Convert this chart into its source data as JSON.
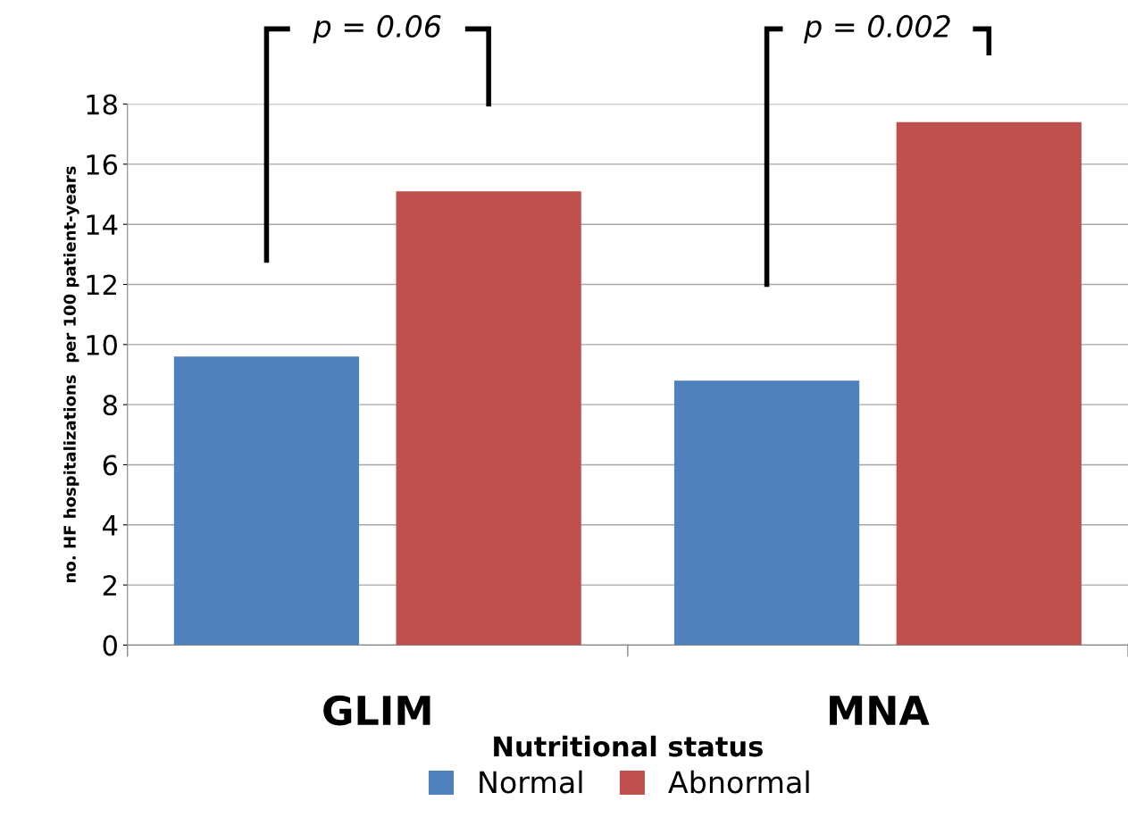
{
  "chart_data": {
    "type": "bar",
    "xlabel": "Nutritional status",
    "ylabel": "no. HF hospitalizations  per 100 patient-years",
    "categories": [
      "GLIM",
      "MNA"
    ],
    "series": [
      {
        "name": "Normal",
        "color": "#4f81bd",
        "values": [
          9.6,
          8.8
        ]
      },
      {
        "name": "Abnormal",
        "color": "#c0504d",
        "values": [
          15.1,
          17.4
        ]
      }
    ],
    "ylim": [
      0,
      18
    ],
    "yticks": [
      0,
      2,
      4,
      6,
      8,
      10,
      12,
      14,
      16,
      18
    ],
    "grid": "y",
    "legend": "bottom",
    "annotations": [
      "p = 0.06",
      "p = 0.002"
    ]
  }
}
